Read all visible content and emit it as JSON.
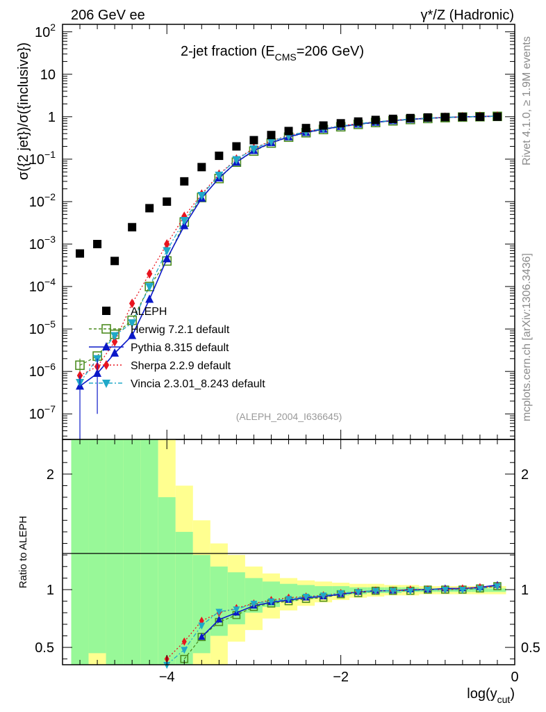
{
  "header": {
    "left": "206 GeV ee",
    "right": "γ*/Z (Hadronic)"
  },
  "side_labels": {
    "rivet": "Rivet 4.1.0, ≥ 1.9M events",
    "mcplots": "mcplots.cern.ch [arXiv:1306.3436]"
  },
  "colors": {
    "data": "#000000",
    "herwig": "#4c8c1f",
    "pythia": "#0a18c8",
    "sherpa": "#e8141e",
    "vincia": "#20a8c8",
    "band_inner": "#98f898",
    "band_outer": "#ffff90"
  },
  "chart_data": [
    {
      "type": "scatter",
      "title": "2-jet fraction (E",
      "title_sub": "CMS",
      "title_tail": "=206 GeV)",
      "analysis_tag": "(ALEPH_2004_I636645)",
      "ylabel": "σ({2 jet})/σ({inclusive})",
      "yscale": "log",
      "ylim": [
        2.5e-08,
        150
      ],
      "xlim": [
        -5.2,
        0
      ],
      "y_ticks": [
        {
          "value": 100,
          "base": "10",
          "exp": "2"
        },
        {
          "value": 10,
          "base": "10",
          "exp": ""
        },
        {
          "value": 1,
          "base": "1",
          "exp": ""
        },
        {
          "value": 0.1,
          "base": "10",
          "exp": "−1"
        },
        {
          "value": 0.01,
          "base": "10",
          "exp": "−2"
        },
        {
          "value": 0.001,
          "base": "10",
          "exp": "−3"
        },
        {
          "value": 0.0001,
          "base": "10",
          "exp": "−4"
        },
        {
          "value": 1e-05,
          "base": "10",
          "exp": "−5"
        },
        {
          "value": 1e-06,
          "base": "10",
          "exp": "−6"
        },
        {
          "value": 1e-07,
          "base": "10",
          "exp": "−7"
        }
      ],
      "x": [
        -5.0,
        -4.8,
        -4.6,
        -4.4,
        -4.2,
        -4.0,
        -3.8,
        -3.6,
        -3.4,
        -3.2,
        -3.0,
        -2.8,
        -2.6,
        -2.4,
        -2.2,
        -2.0,
        -1.8,
        -1.6,
        -1.4,
        -1.2,
        -1.0,
        -0.8,
        -0.6,
        -0.4,
        -0.2
      ],
      "data": {
        "name": "ALEPH",
        "values": [
          0.0006,
          0.001,
          0.0004,
          0.0025,
          0.007,
          0.01,
          0.03,
          0.065,
          0.12,
          0.2,
          0.28,
          0.37,
          0.46,
          0.54,
          0.62,
          0.7,
          0.77,
          0.84,
          0.89,
          0.93,
          0.96,
          0.98,
          0.99,
          0.995,
          1.0
        ]
      },
      "series": [
        {
          "name": "Herwig 7.2.1 default",
          "key": "herwig",
          "marker": "open-square",
          "dash": "4,3",
          "values": [
            1.4e-06,
            2.3e-06,
            7.5e-06,
            1.6e-05,
            0.0001,
            0.0004,
            0.0033,
            0.0125,
            0.035,
            0.085,
            0.155,
            0.24,
            0.33,
            0.42,
            0.5,
            0.58,
            0.66,
            0.73,
            0.8,
            0.86,
            0.91,
            0.95,
            0.98,
            1.0,
            1.02
          ]
        },
        {
          "name": "Pythia 8.315 default",
          "key": "pythia",
          "marker": "triangle-up",
          "dash": "",
          "values": [
            4.5e-07,
            9e-07,
            2.7e-06,
            7e-06,
            5e-05,
            0.00045,
            0.0027,
            0.012,
            0.036,
            0.085,
            0.16,
            0.245,
            0.335,
            0.425,
            0.51,
            0.59,
            0.67,
            0.74,
            0.81,
            0.87,
            0.92,
            0.96,
            0.99,
            1.01,
            1.03
          ]
        },
        {
          "name": "Sherpa 2.2.9 default",
          "key": "sherpa",
          "marker": "diamond",
          "dash": "2,3",
          "values": [
            8e-07,
            1.3e-06,
            5e-06,
            4e-05,
            0.0002,
            0.001,
            0.0045,
            0.015,
            0.044,
            0.1,
            0.18,
            0.27,
            0.36,
            0.45,
            0.53,
            0.61,
            0.69,
            0.76,
            0.82,
            0.88,
            0.93,
            0.97,
            1.0,
            1.02,
            1.03
          ]
        },
        {
          "name": "Vincia 2.3.01_8.243 default",
          "key": "vincia",
          "marker": "triangle-down",
          "dash": "6,3,2,3",
          "values": [
            5.5e-07,
            2e-06,
            7e-06,
            1.4e-05,
            0.0001,
            0.0007,
            0.0036,
            0.014,
            0.042,
            0.098,
            0.175,
            0.265,
            0.355,
            0.445,
            0.525,
            0.605,
            0.685,
            0.755,
            0.82,
            0.875,
            0.925,
            0.965,
            0.995,
            1.015,
            1.025
          ]
        }
      ]
    },
    {
      "type": "line",
      "ylabel": "Ratio to ALEPH",
      "xlabel_main": "log(y",
      "xlabel_sub": "cut",
      "xlabel_tail": ")",
      "ylim": [
        0.35,
        2.3
      ],
      "xlim": [
        -5.2,
        0
      ],
      "y_ticks": [
        {
          "value": 0.5,
          "label": "0.5"
        },
        {
          "value": 1,
          "label": "1"
        },
        {
          "value": 2,
          "label": "2"
        }
      ],
      "x_ticks": [
        {
          "value": -4,
          "label": "−4"
        },
        {
          "value": -2,
          "label": "−2"
        },
        {
          "value": 0,
          "label": "0"
        }
      ],
      "band_edges": [
        -5.1,
        -4.9,
        -4.7,
        -4.5,
        -4.3,
        -4.1,
        -3.9,
        -3.7,
        -3.5,
        -3.3,
        -3.1,
        -2.9,
        -2.7,
        -2.5,
        -2.3,
        -2.1,
        -1.9,
        -1.7,
        -1.5,
        -1.3,
        -1.1,
        -0.9,
        -0.7,
        -0.5,
        -0.3,
        -0.1
      ],
      "band_inner": [
        [
          0.3,
          2.5
        ],
        [
          0.45,
          2.5
        ],
        [
          0.3,
          2.5
        ],
        [
          0.3,
          2.5
        ],
        [
          0.3,
          2.5
        ],
        [
          0.35,
          1.8
        ],
        [
          0.3,
          1.5
        ],
        [
          0.45,
          1.3
        ],
        [
          0.6,
          1.2
        ],
        [
          0.7,
          1.15
        ],
        [
          0.8,
          1.1
        ],
        [
          0.85,
          1.07
        ],
        [
          0.9,
          1.05
        ],
        [
          0.92,
          1.04
        ],
        [
          0.94,
          1.03
        ],
        [
          0.95,
          1.03
        ],
        [
          0.96,
          1.02
        ],
        [
          0.97,
          1.02
        ],
        [
          0.97,
          1.02
        ],
        [
          0.98,
          1.02
        ],
        [
          0.98,
          1.01
        ],
        [
          0.98,
          1.01
        ],
        [
          0.98,
          1.01
        ],
        [
          0.98,
          1.01
        ],
        [
          0.98,
          1.01
        ]
      ],
      "band_outer": [
        [
          0.3,
          2.5
        ],
        [
          0.3,
          2.5
        ],
        [
          0.3,
          2.5
        ],
        [
          0.3,
          2.5
        ],
        [
          0.3,
          2.5
        ],
        [
          0.3,
          2.5
        ],
        [
          0.3,
          1.9
        ],
        [
          0.3,
          1.6
        ],
        [
          0.35,
          1.4
        ],
        [
          0.55,
          1.3
        ],
        [
          0.65,
          1.2
        ],
        [
          0.75,
          1.14
        ],
        [
          0.82,
          1.1
        ],
        [
          0.86,
          1.08
        ],
        [
          0.89,
          1.07
        ],
        [
          0.91,
          1.06
        ],
        [
          0.93,
          1.05
        ],
        [
          0.94,
          1.05
        ],
        [
          0.95,
          1.04
        ],
        [
          0.95,
          1.04
        ],
        [
          0.96,
          1.03
        ],
        [
          0.96,
          1.03
        ],
        [
          0.96,
          1.03
        ],
        [
          0.96,
          1.03
        ],
        [
          0.96,
          1.03
        ]
      ],
      "series": [
        {
          "key": "herwig",
          "values": [
            null,
            null,
            null,
            null,
            null,
            0.28,
            0.4,
            0.59,
            0.72,
            0.78,
            0.85,
            0.88,
            0.9,
            0.92,
            0.93,
            0.96,
            0.97,
            0.99,
            0.99,
            0.99,
            1.0,
            1.0,
            1.0,
            1.01,
            1.03
          ]
        },
        {
          "key": "pythia",
          "values": [
            null,
            null,
            null,
            null,
            null,
            null,
            0.33,
            0.59,
            0.74,
            0.8,
            0.86,
            0.89,
            0.91,
            0.93,
            0.94,
            0.96,
            0.98,
            0.99,
            0.99,
            1.0,
            1.0,
            1.01,
            1.01,
            1.02,
            1.04
          ]
        },
        {
          "key": "sherpa",
          "values": [
            null,
            null,
            null,
            null,
            null,
            0.4,
            0.55,
            0.73,
            0.8,
            0.84,
            0.88,
            0.91,
            0.93,
            0.94,
            0.95,
            0.97,
            0.98,
            0.99,
            0.99,
            1.0,
            1.0,
            1.0,
            1.01,
            1.02,
            1.03
          ]
        },
        {
          "key": "vincia",
          "values": [
            null,
            null,
            null,
            null,
            null,
            0.35,
            0.48,
            0.69,
            0.81,
            0.83,
            0.88,
            0.9,
            0.92,
            0.94,
            0.95,
            0.97,
            0.98,
            0.99,
            0.99,
            0.99,
            1.0,
            1.0,
            1.0,
            1.01,
            1.03
          ]
        }
      ]
    }
  ]
}
